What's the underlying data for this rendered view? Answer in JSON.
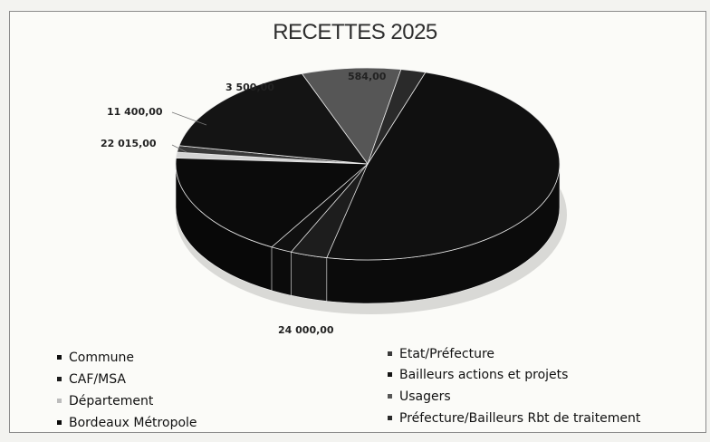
{
  "chart_data": {
    "type": "pie",
    "title": "RECETTES 2025",
    "style": "3d",
    "series": [
      {
        "name": "Commune",
        "value": null,
        "label": "",
        "color": "#101010"
      },
      {
        "name": "CAF/MSA",
        "value": 24000.0,
        "label": "24 000,00",
        "color": "#1d1d1d"
      },
      {
        "name": "Département",
        "value": 22015.0,
        "label": "22 015,00",
        "color": "#d4d4d4"
      },
      {
        "name": "Bordeaux Métropole",
        "value": null,
        "label": "",
        "color": "#0b0b0b"
      },
      {
        "name": "Etat/Préfecture",
        "value": 11400.0,
        "label": "11 400,00",
        "color": "#3a3a3a"
      },
      {
        "name": "Bailleurs actions et projets",
        "value": 3500.0,
        "label": "3 500,00",
        "color": "#141414"
      },
      {
        "name": "Usagers",
        "value": null,
        "label": "",
        "color": "#565656"
      },
      {
        "name": "Préfecture/Bailleurs Rbt de traitement",
        "value": 584.0,
        "label": "584,00",
        "color": "#2a2a2a"
      }
    ],
    "legend": {
      "position": "bottom",
      "left_column": [
        "Commune",
        "CAF/MSA",
        "Département",
        "Bordeaux Métropole"
      ],
      "right_column": [
        "Etat/Préfecture",
        "Bailleurs actions et projets",
        "Usagers",
        "Préfecture/Bailleurs Rbt de traitement"
      ]
    }
  }
}
